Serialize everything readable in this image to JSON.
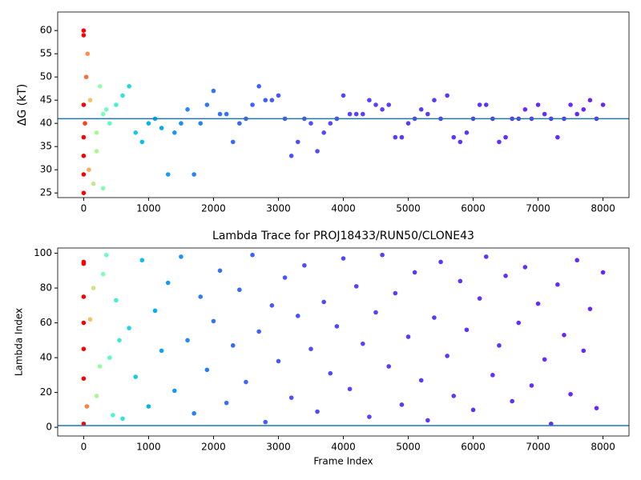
{
  "chart_data": [
    {
      "type": "scatter",
      "y_label": "ΔG (kT)",
      "colormap": "rainbow",
      "hline": 41,
      "hline_color": "#1f77b4",
      "xlim": [
        -400,
        8400
      ],
      "ylim": [
        24,
        64
      ],
      "xticks": [
        0,
        1000,
        2000,
        3000,
        4000,
        5000,
        6000,
        7000,
        8000
      ],
      "yticks": [
        25,
        30,
        35,
        40,
        45,
        50,
        55,
        60
      ],
      "x": [
        0,
        100,
        200,
        300,
        400,
        500,
        600,
        700,
        800,
        900,
        1000,
        1100,
        1200,
        1300,
        1400,
        1500,
        1600,
        1700,
        1800,
        1900,
        2000,
        2100,
        2200,
        2300,
        2400,
        2500,
        2600,
        2700,
        2800,
        2900,
        3000,
        3100,
        3200,
        3300,
        3400,
        3500,
        3600,
        3700,
        3800,
        3900,
        4000,
        4100,
        4200,
        4300,
        4400,
        4500,
        4600,
        4700,
        4800,
        4900,
        5000,
        5100,
        5200,
        5300,
        5400,
        5500,
        5600,
        5700,
        5800,
        5900,
        6000,
        6100,
        6200,
        6300,
        6400,
        6500,
        6600,
        6700,
        6800,
        6900,
        7000,
        7100,
        7200,
        7300,
        7400,
        7500,
        7600,
        7700,
        7800,
        7900,
        8000,
        0,
        0,
        0,
        0,
        0,
        0,
        20,
        40,
        60,
        80,
        150,
        200,
        250,
        300,
        350
      ],
      "values": [
        60,
        45,
        38,
        42,
        40,
        44,
        46,
        48,
        38,
        36,
        40,
        41,
        39,
        29,
        38,
        40,
        43,
        29,
        40,
        44,
        47,
        42,
        42,
        36,
        40,
        41,
        44,
        48,
        45,
        45,
        46,
        41,
        33,
        36,
        41,
        40,
        34,
        38,
        40,
        41,
        46,
        42,
        42,
        42,
        45,
        44,
        43,
        44,
        37,
        37,
        40,
        41,
        43,
        42,
        45,
        41,
        46,
        37,
        36,
        38,
        41,
        44,
        44,
        41,
        36,
        37,
        41,
        41,
        43,
        41,
        44,
        42,
        41,
        37,
        41,
        44,
        42,
        43,
        45,
        41,
        44,
        25,
        29,
        33,
        37,
        44,
        59,
        40,
        50,
        55,
        30,
        27,
        34,
        48,
        26,
        43
      ]
    },
    {
      "type": "scatter",
      "title": "Lambda Trace for PROJ18433/RUN50/CLONE43",
      "x_label": "Frame Index",
      "y_label": "Lambda Index",
      "colormap": "rainbow",
      "hline": 1,
      "hline_color": "#1f77b4",
      "xlim": [
        -400,
        8400
      ],
      "ylim": [
        -5,
        103
      ],
      "xticks": [
        0,
        1000,
        2000,
        3000,
        4000,
        5000,
        6000,
        7000,
        8000
      ],
      "yticks": [
        0,
        20,
        40,
        60,
        80,
        100
      ],
      "x": [
        0,
        100,
        200,
        300,
        400,
        500,
        600,
        700,
        800,
        900,
        1000,
        1100,
        1200,
        1300,
        1400,
        1500,
        1600,
        1700,
        1800,
        1900,
        2000,
        2100,
        2200,
        2300,
        2400,
        2500,
        2600,
        2700,
        2800,
        2900,
        3000,
        3100,
        3200,
        3300,
        3400,
        3500,
        3600,
        3700,
        3800,
        3900,
        4000,
        4100,
        4200,
        4300,
        4400,
        4500,
        4600,
        4700,
        4800,
        4900,
        5000,
        5100,
        5200,
        5300,
        5400,
        5500,
        5600,
        5700,
        5800,
        5900,
        6000,
        6100,
        6200,
        6300,
        6400,
        6500,
        6600,
        6700,
        6800,
        6900,
        7000,
        7100,
        7200,
        7300,
        7400,
        7500,
        7600,
        7700,
        7800,
        7900,
        8000,
        0,
        0,
        0,
        0,
        0,
        0,
        50,
        150,
        250,
        350,
        450,
        550
      ],
      "values": [
        95,
        62,
        18,
        88,
        40,
        73,
        5,
        57,
        29,
        96,
        12,
        67,
        44,
        83,
        21,
        98,
        50,
        8,
        75,
        33,
        61,
        90,
        14,
        47,
        79,
        26,
        99,
        55,
        3,
        70,
        38,
        86,
        17,
        64,
        93,
        45,
        9,
        72,
        31,
        58,
        97,
        22,
        81,
        48,
        6,
        66,
        99,
        35,
        77,
        13,
        52,
        89,
        27,
        4,
        63,
        95,
        41,
        18,
        84,
        56,
        10,
        74,
        98,
        30,
        47,
        87,
        15,
        60,
        92,
        24,
        71,
        39,
        2,
        82,
        53,
        19,
        96,
        44,
        68,
        11,
        89,
        2,
        28,
        45,
        60,
        75,
        94,
        12,
        80,
        35,
        99,
        7,
        50
      ]
    }
  ]
}
